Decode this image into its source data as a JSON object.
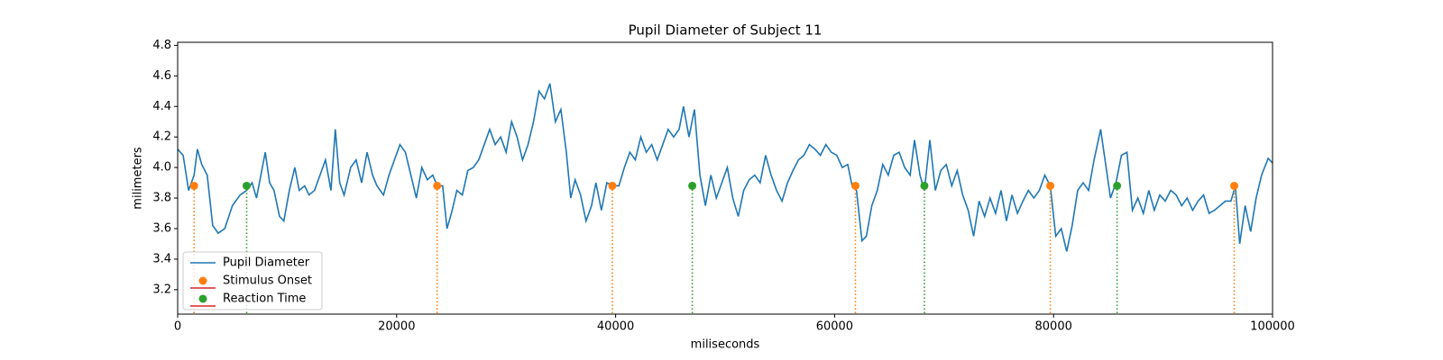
{
  "chart_data": {
    "type": "line",
    "title": "Pupil Diameter of Subject 11",
    "xlabel": "miliseconds",
    "ylabel": "milimeters",
    "xlim": [
      0,
      100000
    ],
    "ylim": [
      3.04,
      4.82
    ],
    "xticks": [
      0,
      20000,
      40000,
      60000,
      80000,
      100000
    ],
    "yticks": [
      3.2,
      3.4,
      3.6,
      3.8,
      {
        "value": 4,
        "label": "4.0"
      },
      4.2,
      4.4,
      4.6,
      4.8
    ],
    "legend": "lower left",
    "series": [
      {
        "name": "Pupil Diameter",
        "color": "#1f77b4",
        "x": [
          0,
          500,
          1000,
          1500,
          1800,
          2200,
          2700,
          3200,
          3700,
          4300,
          5000,
          5700,
          6300,
          6800,
          7200,
          7600,
          8000,
          8400,
          8800,
          9300,
          9700,
          10200,
          10700,
          11100,
          11600,
          12000,
          12500,
          13000,
          13500,
          14000,
          14400,
          14800,
          15200,
          15800,
          16300,
          16800,
          17300,
          17800,
          18200,
          18800,
          19300,
          19800,
          20300,
          20800,
          21300,
          21800,
          22300,
          22800,
          23300,
          23700,
          24200,
          24600,
          25000,
          25500,
          26000,
          26500,
          27000,
          27500,
          28000,
          28500,
          29000,
          29500,
          30000,
          30500,
          31000,
          31500,
          32000,
          32500,
          33000,
          33500,
          34000,
          34500,
          35000,
          35500,
          35900,
          36300,
          36800,
          37300,
          37800,
          38200,
          38700,
          39200,
          39800,
          40300,
          40800,
          41300,
          41800,
          42300,
          42800,
          43300,
          43800,
          44300,
          44800,
          45300,
          45800,
          46200,
          46700,
          47200,
          47700,
          48200,
          48700,
          49200,
          49700,
          50200,
          50700,
          51200,
          51700,
          52200,
          52700,
          53200,
          53700,
          54200,
          54700,
          55200,
          55700,
          56200,
          56700,
          57200,
          57700,
          58200,
          58700,
          59200,
          59700,
          60200,
          60700,
          61200,
          61600,
          62000,
          62500,
          62900,
          63400,
          63900,
          64400,
          64900,
          65400,
          65900,
          66400,
          66900,
          67300,
          67800,
          68200,
          68700,
          69200,
          69700,
          70200,
          70700,
          71200,
          71700,
          72200,
          72700,
          73200,
          73700,
          74200,
          74700,
          75200,
          75700,
          76200,
          76700,
          77200,
          77700,
          78200,
          78700,
          79200,
          79700,
          80200,
          80700,
          81200,
          81700,
          82200,
          82700,
          83200,
          83700,
          84300,
          84700,
          85200,
          85700,
          86200,
          86700,
          87200,
          87700,
          88200,
          88700,
          89200,
          89700,
          90200,
          90700,
          91200,
          91700,
          92200,
          92700,
          93200,
          93700,
          94200,
          94700,
          95200,
          95700,
          96200,
          96600,
          97000,
          97500,
          98000,
          98500,
          99000,
          99600,
          100000
        ],
        "values": [
          4.12,
          4.08,
          3.85,
          3.95,
          4.12,
          4.02,
          3.95,
          3.62,
          3.57,
          3.6,
          3.75,
          3.82,
          3.85,
          3.9,
          3.8,
          3.95,
          4.1,
          3.9,
          3.85,
          3.68,
          3.65,
          3.85,
          4.0,
          3.85,
          3.88,
          3.82,
          3.85,
          3.95,
          4.05,
          3.85,
          4.25,
          3.9,
          3.82,
          4.0,
          4.05,
          3.9,
          4.1,
          3.95,
          3.88,
          3.82,
          3.95,
          4.05,
          4.15,
          4.1,
          3.95,
          3.8,
          4.0,
          3.92,
          3.95,
          3.88,
          3.88,
          3.6,
          3.7,
          3.85,
          3.82,
          3.98,
          4.0,
          4.05,
          4.15,
          4.25,
          4.15,
          4.2,
          4.1,
          4.3,
          4.2,
          4.05,
          4.15,
          4.3,
          4.5,
          4.45,
          4.55,
          4.3,
          4.38,
          4.1,
          3.8,
          3.92,
          3.82,
          3.65,
          3.75,
          3.9,
          3.72,
          3.9,
          3.88,
          3.88,
          4.0,
          4.1,
          4.05,
          4.2,
          4.1,
          4.15,
          4.05,
          4.15,
          4.25,
          4.2,
          4.25,
          4.4,
          4.2,
          4.38,
          3.95,
          3.75,
          3.95,
          3.8,
          3.9,
          4.0,
          3.8,
          3.68,
          3.85,
          3.92,
          3.95,
          3.9,
          4.08,
          3.95,
          3.85,
          3.78,
          3.9,
          3.98,
          4.05,
          4.08,
          4.15,
          4.12,
          4.08,
          4.15,
          4.1,
          4.08,
          4.0,
          4.02,
          3.88,
          3.85,
          3.52,
          3.55,
          3.75,
          3.85,
          4.02,
          3.95,
          4.08,
          4.1,
          4.0,
          3.95,
          4.18,
          3.95,
          3.85,
          4.18,
          3.85,
          3.98,
          4.02,
          3.88,
          3.98,
          3.82,
          3.72,
          3.55,
          3.78,
          3.68,
          3.8,
          3.7,
          3.85,
          3.65,
          3.82,
          3.7,
          3.78,
          3.85,
          3.8,
          3.85,
          3.95,
          3.88,
          3.55,
          3.6,
          3.45,
          3.62,
          3.85,
          3.9,
          3.85,
          4.05,
          4.25,
          4.05,
          3.8,
          3.9,
          4.08,
          4.1,
          3.72,
          3.8,
          3.7,
          3.85,
          3.72,
          3.82,
          3.78,
          3.85,
          3.82,
          3.75,
          3.8,
          3.72,
          3.78,
          3.82,
          3.7,
          3.72,
          3.75,
          3.78,
          3.78,
          3.88,
          3.5,
          3.75,
          3.58,
          3.8,
          3.95,
          4.06,
          4.03
        ]
      },
      {
        "name": "Stimulus Onset",
        "type": "scatter",
        "color": "#ff7f0e",
        "legend_line_color": "#d62728",
        "x": [
          1500,
          23700,
          39700,
          61900,
          79700,
          96500
        ],
        "values": [
          3.88,
          3.88,
          3.88,
          3.88,
          3.88,
          3.88
        ]
      },
      {
        "name": "Reaction Time",
        "type": "scatter",
        "color": "#2ca02c",
        "legend_line_color": "#d62728",
        "x": [
          6300,
          47000,
          68200,
          85800
        ],
        "values": [
          3.88,
          3.88,
          3.88,
          3.88
        ]
      }
    ]
  }
}
